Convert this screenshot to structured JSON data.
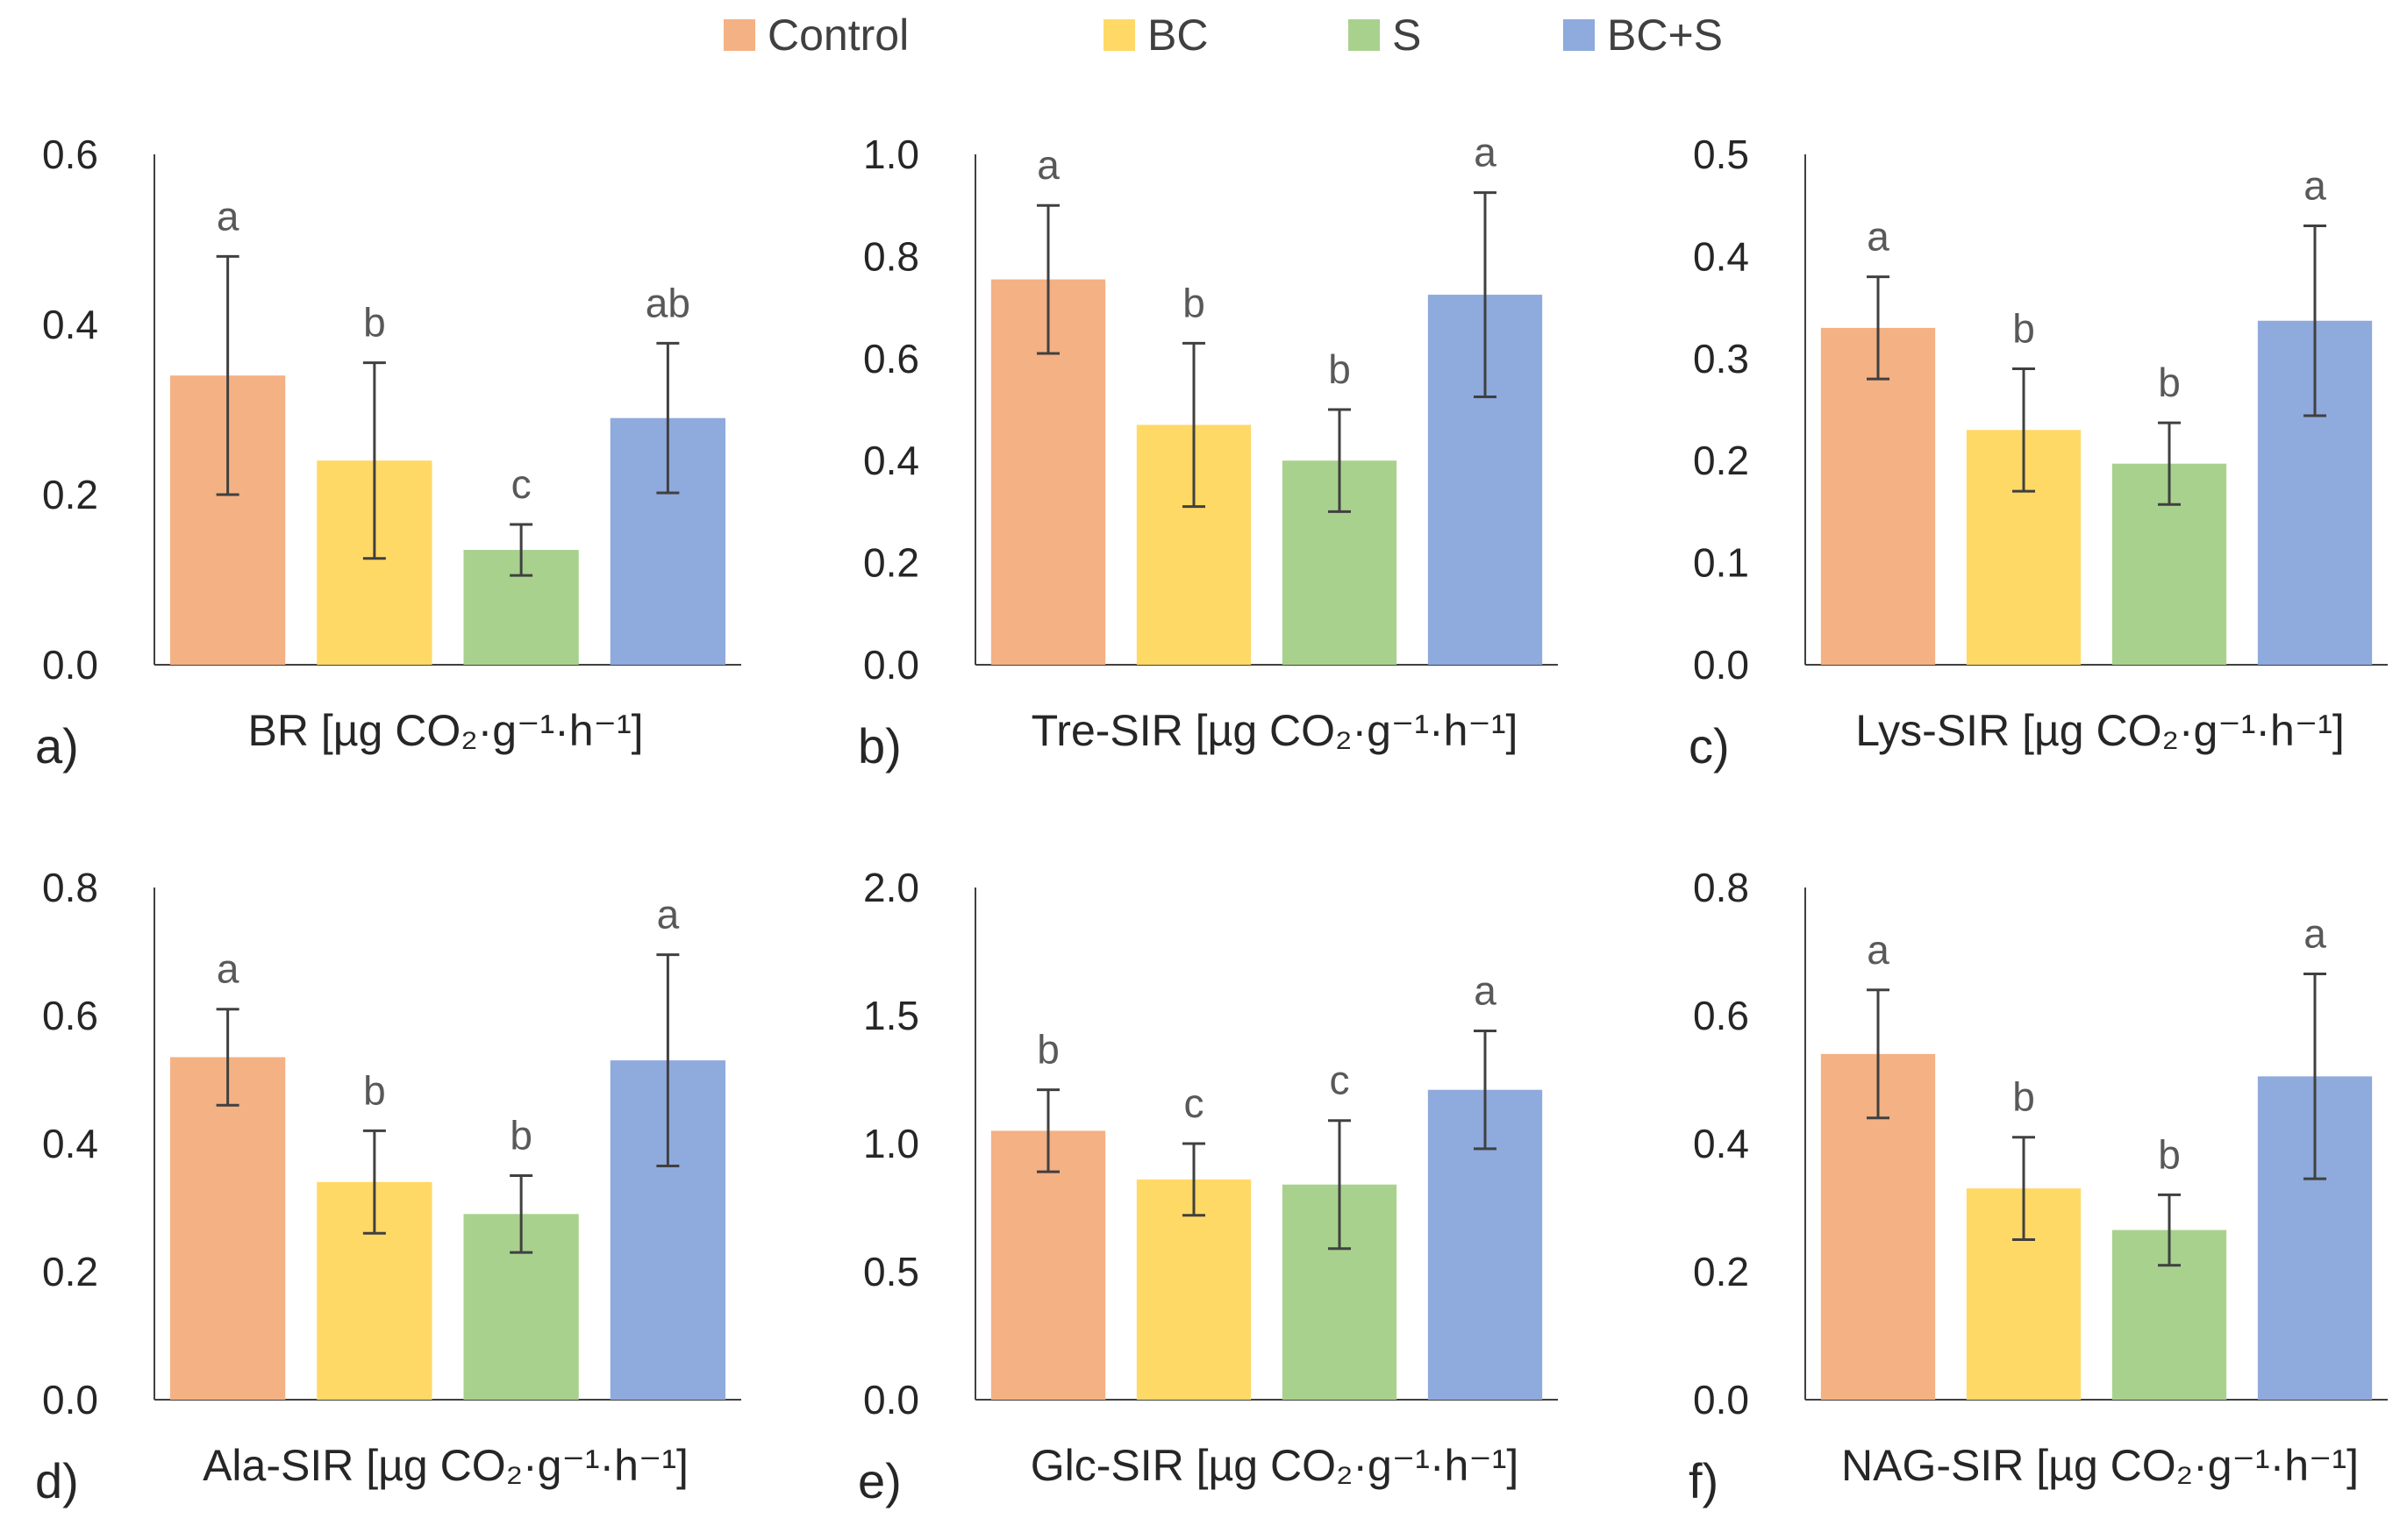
{
  "legend": [
    {
      "name": "Control",
      "color": "#F4B183"
    },
    {
      "name": "BC",
      "color": "#FFD966"
    },
    {
      "name": "S",
      "color": "#A9D18E"
    },
    {
      "name": "BC+S",
      "color": "#8FAADC"
    }
  ],
  "chart_data": [
    {
      "type": "bar",
      "panel_label": "a)",
      "xlabel": "BR [µg CO₂·g⁻¹·h⁻¹]",
      "ylim": [
        0,
        0.6
      ],
      "yticks": [
        "0.0",
        "0.2",
        "0.4",
        "0.6"
      ],
      "categories": [
        "Control",
        "BC",
        "S",
        "BC+S"
      ],
      "values": [
        0.34,
        0.24,
        0.135,
        0.29
      ],
      "errors": [
        0.14,
        0.115,
        0.03,
        0.088
      ],
      "letters": [
        "a",
        "b",
        "c",
        "ab"
      ]
    },
    {
      "type": "bar",
      "panel_label": "b)",
      "xlabel": "Tre-SIR [µg CO₂·g⁻¹·h⁻¹]",
      "ylim": [
        0,
        1.0
      ],
      "yticks": [
        "0.0",
        "0.2",
        "0.4",
        "0.6",
        "0.8",
        "1.0"
      ],
      "categories": [
        "Control",
        "BC",
        "S",
        "BC+S"
      ],
      "values": [
        0.755,
        0.47,
        0.4,
        0.725
      ],
      "errors": [
        0.145,
        0.16,
        0.1,
        0.2
      ],
      "letters": [
        "a",
        "b",
        "b",
        "a"
      ]
    },
    {
      "type": "bar",
      "panel_label": "c)",
      "xlabel": "Lys-SIR [µg CO₂·g⁻¹·h⁻¹]",
      "ylim": [
        0,
        0.5
      ],
      "yticks": [
        "0.0",
        "0.1",
        "0.2",
        "0.3",
        "0.4",
        "0.5"
      ],
      "categories": [
        "Control",
        "BC",
        "S",
        "BC+S"
      ],
      "values": [
        0.33,
        0.23,
        0.197,
        0.337
      ],
      "errors": [
        0.05,
        0.06,
        0.04,
        0.093
      ],
      "letters": [
        "a",
        "b",
        "b",
        "a"
      ]
    },
    {
      "type": "bar",
      "panel_label": "d)",
      "xlabel": "Ala-SIR [µg CO₂·g⁻¹·h⁻¹]",
      "ylim": [
        0,
        0.8
      ],
      "yticks": [
        "0.0",
        "0.2",
        "0.4",
        "0.6",
        "0.8"
      ],
      "categories": [
        "Control",
        "BC",
        "S",
        "BC+S"
      ],
      "values": [
        0.535,
        0.34,
        0.29,
        0.53
      ],
      "errors": [
        0.075,
        0.08,
        0.06,
        0.165
      ],
      "letters": [
        "a",
        "b",
        "b",
        "a"
      ]
    },
    {
      "type": "bar",
      "panel_label": "e)",
      "xlabel": "Glc-SIR [µg CO₂·g⁻¹·h⁻¹]",
      "ylim": [
        0,
        2.0
      ],
      "yticks": [
        "0.0",
        "0.5",
        "1.0",
        "1.5",
        "2.0"
      ],
      "categories": [
        "Control",
        "BC",
        "S",
        "BC+S"
      ],
      "values": [
        1.05,
        0.86,
        0.84,
        1.21
      ],
      "errors": [
        0.16,
        0.14,
        0.25,
        0.23
      ],
      "letters": [
        "b",
        "c",
        "c",
        "a"
      ]
    },
    {
      "type": "bar",
      "panel_label": "f)",
      "xlabel": "NAG-SIR [µg CO₂·g⁻¹·h⁻¹]",
      "ylim": [
        0,
        0.8
      ],
      "yticks": [
        "0.0",
        "0.2",
        "0.4",
        "0.6",
        "0.8"
      ],
      "categories": [
        "Control",
        "BC",
        "S",
        "BC+S"
      ],
      "values": [
        0.54,
        0.33,
        0.265,
        0.505
      ],
      "errors": [
        0.1,
        0.08,
        0.055,
        0.16
      ],
      "letters": [
        "a",
        "b",
        "b",
        "a"
      ]
    }
  ]
}
